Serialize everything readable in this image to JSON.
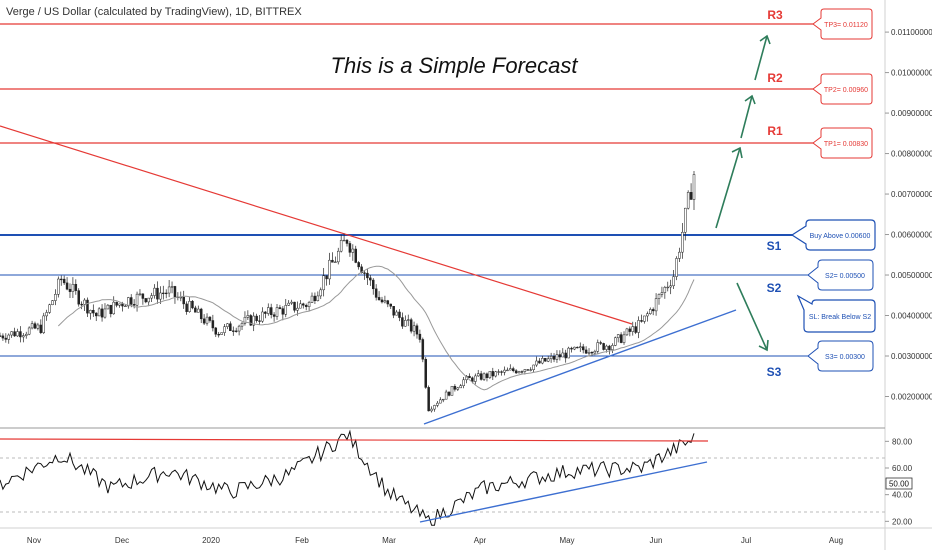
{
  "header": {
    "symbol_title": "Verge / US Dollar (calculated by TradingView), 1D, BITTREX"
  },
  "forecast_title": "This is a Simple Forecast",
  "colors": {
    "resistance": "#e53935",
    "support": "#1e50b4",
    "arrow": "#2e7d5b",
    "candle": "#222222",
    "ma": "#999999",
    "trend_support": "#3d6fd1"
  },
  "levels": {
    "resistance": [
      {
        "label": "R1",
        "tag": "TP1= 0.00830",
        "value": 0.0083
      },
      {
        "label": "R2",
        "tag": "TP2= 0.00960",
        "value": 0.0096
      },
      {
        "label": "R3",
        "tag": "TP3= 0.01120",
        "value": 0.0112
      }
    ],
    "support": [
      {
        "label": "S1",
        "tag": "Buy Above 0.00600",
        "value": 0.006
      },
      {
        "label": "S2",
        "tag": "S2= 0.00500",
        "value": 0.005
      },
      {
        "label": "S3",
        "tag": "S3= 0.00300",
        "value": 0.003
      }
    ],
    "stop_tag": "SL: Break Below S2"
  },
  "chart_data": {
    "type": "candlestick",
    "title": "Verge / US Dollar (calculated by TradingView), 1D, BITTREX",
    "subtitle": "This is a Simple Forecast",
    "x_ticks": [
      "Nov",
      "Dec",
      "2020",
      "Feb",
      "Mar",
      "Apr",
      "May",
      "Jun",
      "Jul",
      "Aug"
    ],
    "price_axis": {
      "ticks": [
        "0.01100000",
        "0.01000000",
        "0.00900000",
        "0.00800000",
        "0.00700000",
        "0.00600000",
        "0.00500000",
        "0.00400000",
        "0.00300000",
        "0.00200000"
      ],
      "ylim": [
        0.0013,
        0.0117
      ]
    },
    "price_series_approx": [
      {
        "date": "2019-10-18",
        "close": 0.0035
      },
      {
        "date": "2019-11-01",
        "close": 0.0037
      },
      {
        "date": "2019-11-08",
        "close": 0.0049
      },
      {
        "date": "2019-11-20",
        "close": 0.004
      },
      {
        "date": "2019-12-01",
        "close": 0.0044
      },
      {
        "date": "2019-12-15",
        "close": 0.0046
      },
      {
        "date": "2020-01-01",
        "close": 0.0036
      },
      {
        "date": "2020-01-20",
        "close": 0.0041
      },
      {
        "date": "2020-02-01",
        "close": 0.0043
      },
      {
        "date": "2020-02-14",
        "close": 0.0059
      },
      {
        "date": "2020-02-25",
        "close": 0.0044
      },
      {
        "date": "2020-03-10",
        "close": 0.0035
      },
      {
        "date": "2020-03-13",
        "close": 0.0017
      },
      {
        "date": "2020-03-25",
        "close": 0.0024
      },
      {
        "date": "2020-04-15",
        "close": 0.0027
      },
      {
        "date": "2020-05-01",
        "close": 0.0031
      },
      {
        "date": "2020-05-15",
        "close": 0.0033
      },
      {
        "date": "2020-05-25",
        "close": 0.0038
      },
      {
        "date": "2020-06-05",
        "close": 0.005
      },
      {
        "date": "2020-06-12",
        "close": 0.0075
      }
    ],
    "rsi_axis": {
      "ticks": [
        "80.00",
        "60.00",
        "40.00",
        "20.00"
      ],
      "current_label": "50.00",
      "ylim": [
        15,
        90
      ]
    },
    "rsi_series_approx": [
      {
        "date": "2019-10-18",
        "value": 48
      },
      {
        "date": "2019-11-08",
        "value": 70
      },
      {
        "date": "2019-11-25",
        "value": 45
      },
      {
        "date": "2019-12-15",
        "value": 58
      },
      {
        "date": "2020-01-05",
        "value": 42
      },
      {
        "date": "2020-01-25",
        "value": 55
      },
      {
        "date": "2020-02-14",
        "value": 85
      },
      {
        "date": "2020-02-28",
        "value": 42
      },
      {
        "date": "2020-03-13",
        "value": 20
      },
      {
        "date": "2020-04-01",
        "value": 45
      },
      {
        "date": "2020-05-01",
        "value": 58
      },
      {
        "date": "2020-05-25",
        "value": 60
      },
      {
        "date": "2020-06-12",
        "value": 82
      }
    ]
  }
}
